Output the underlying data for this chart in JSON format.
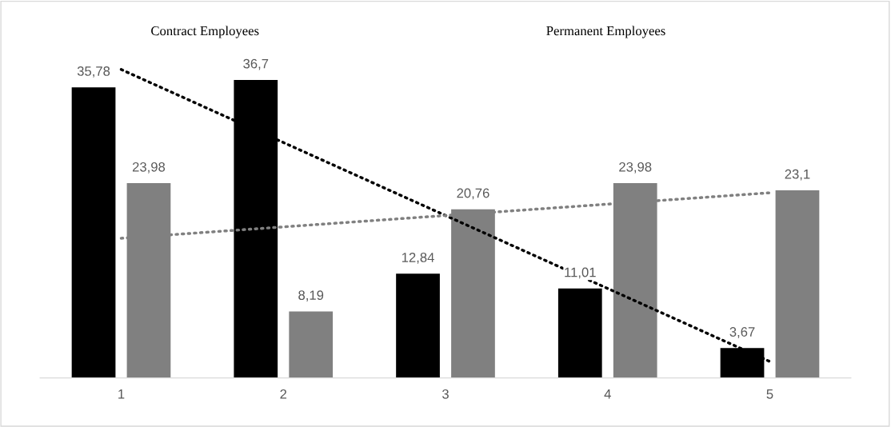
{
  "chart_data": {
    "type": "bar",
    "categories": [
      "1",
      "2",
      "3",
      "4",
      "5"
    ],
    "series": [
      {
        "color": "#000000",
        "values": [
          35.78,
          36.7,
          12.84,
          11.01,
          3.67
        ],
        "value_labels": [
          "35,78",
          "36,7",
          "12,84",
          "11,01",
          "3,67"
        ]
      },
      {
        "color": "#808080",
        "values": [
          23.98,
          8.19,
          20.76,
          23.98,
          23.1
        ],
        "value_labels": [
          "23,98",
          "8,19",
          "20,76",
          "23,98",
          "23,1"
        ]
      },
      {
        "type": "line",
        "x": [
          "1",
          "5"
        ],
        "color": "#000000",
        "values": [
          37.98,
          2.02
        ],
        "line_style": "dotted"
      },
      {
        "type": "line",
        "x": [
          "1",
          "5"
        ],
        "color": "#808080",
        "values": [
          17.2,
          22.8
        ],
        "line_style": "dotted"
      }
    ],
    "grid": false,
    "legend": false,
    "tick_labels": "x",
    "annotations": [
      "Contract Employees",
      "Permanent Employees"
    ]
  }
}
